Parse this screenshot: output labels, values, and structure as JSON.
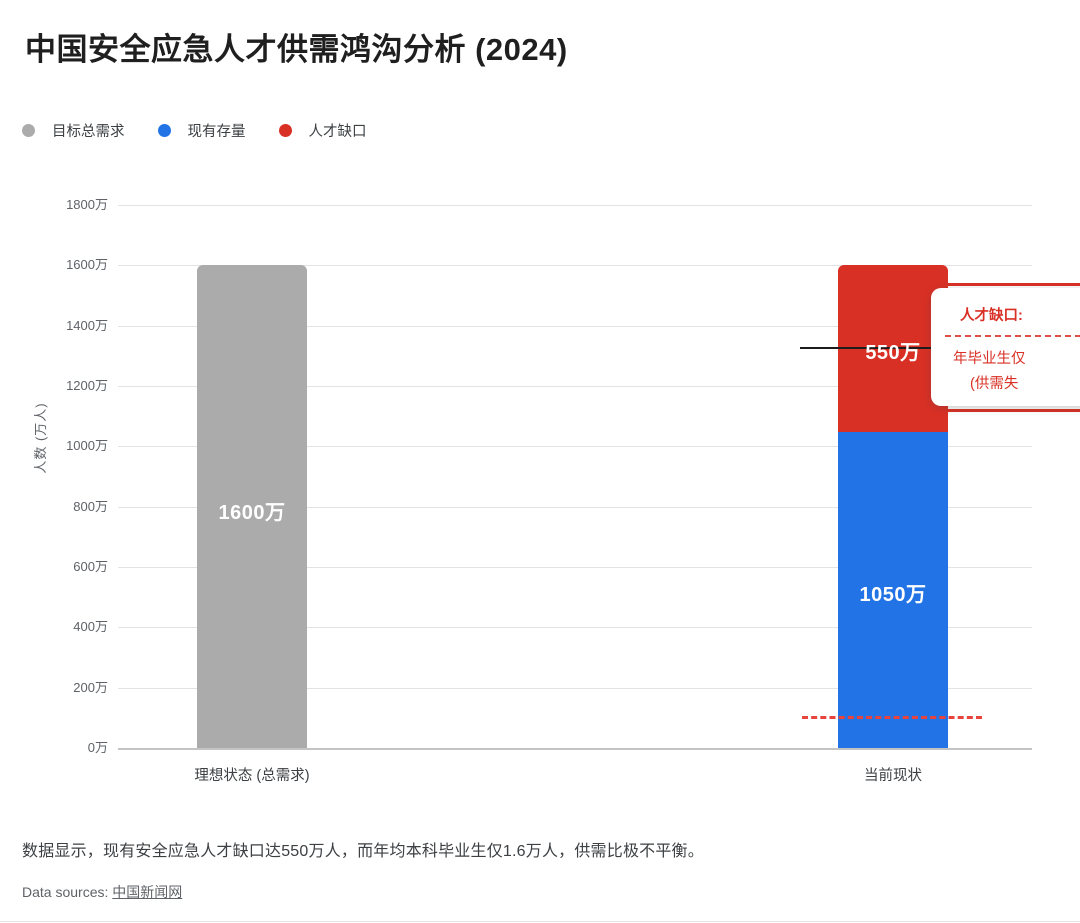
{
  "title": "中国安全应急人才供需鸿沟分析 (2024)",
  "legend": {
    "items": [
      {
        "label": "目标总需求",
        "color": "#ababab"
      },
      {
        "label": "现有存量",
        "color": "#2173e6"
      },
      {
        "label": "人才缺口",
        "color": "#d93025"
      }
    ]
  },
  "y_axis": {
    "title": "人数 (万人)",
    "ticks": [
      "1800万",
      "1600万",
      "1400万",
      "1200万",
      "1000万",
      "800万",
      "600万",
      "400万",
      "200万",
      "0万"
    ]
  },
  "x_axis": {
    "categories": [
      "理想状态 (总需求)",
      "当前现状"
    ]
  },
  "bars": {
    "ideal_label": "1600万",
    "current_stock_label": "1050万",
    "current_gap_label": "550万"
  },
  "annotation": {
    "title": "人才缺口:",
    "line2": "年毕业生仅",
    "line3": "(供需失"
  },
  "footer": {
    "note": "数据显示，现有安全应急人才缺口达550万人，而年均本科毕业生仅1.6万人，供需比极不平衡。",
    "sources_label": "Data sources:",
    "source_link": "中国新闻网"
  },
  "colors": {
    "demand_gray": "#ababab",
    "stock_blue": "#2173e6",
    "gap_red": "#d93025",
    "reference_dashed_red": "#e8433c",
    "grid": "#e3e3e3",
    "axis_baseline": "#c4c4c4",
    "annotation_text_red": "#d93025"
  },
  "chart_data": {
    "type": "bar",
    "stacked": true,
    "title": "中国安全应急人才供需鸿沟分析 (2024)",
    "categories": [
      "理想状态 (总需求)",
      "当前现状"
    ],
    "series": [
      {
        "name": "目标总需求",
        "color": "#ababab",
        "values": [
          1600,
          null
        ]
      },
      {
        "name": "现有存量",
        "color": "#2173e6",
        "values": [
          null,
          1050
        ]
      },
      {
        "name": "人才缺口",
        "color": "#d93025",
        "values": [
          null,
          550
        ]
      }
    ],
    "data_labels": [
      [
        "1600万",
        null
      ],
      [
        null,
        "1050万 / 550万"
      ]
    ],
    "ylabel": "人数 (万人)",
    "xlabel": "",
    "ylim": [
      0,
      1800
    ],
    "ytick_interval": 200,
    "unit": "万人",
    "grid": true,
    "legend_position": "top-left",
    "reference_line": {
      "style": "dashed",
      "color": "#e8433c",
      "y_approx": 100,
      "span": "当前现状 bar"
    },
    "annotation_callout": {
      "points_to": "人才缺口 segment (550万)",
      "visible_text": [
        "人才缺口:",
        "年毕业生仅",
        "(供需失"
      ],
      "clipped_at_right_edge": true
    }
  }
}
